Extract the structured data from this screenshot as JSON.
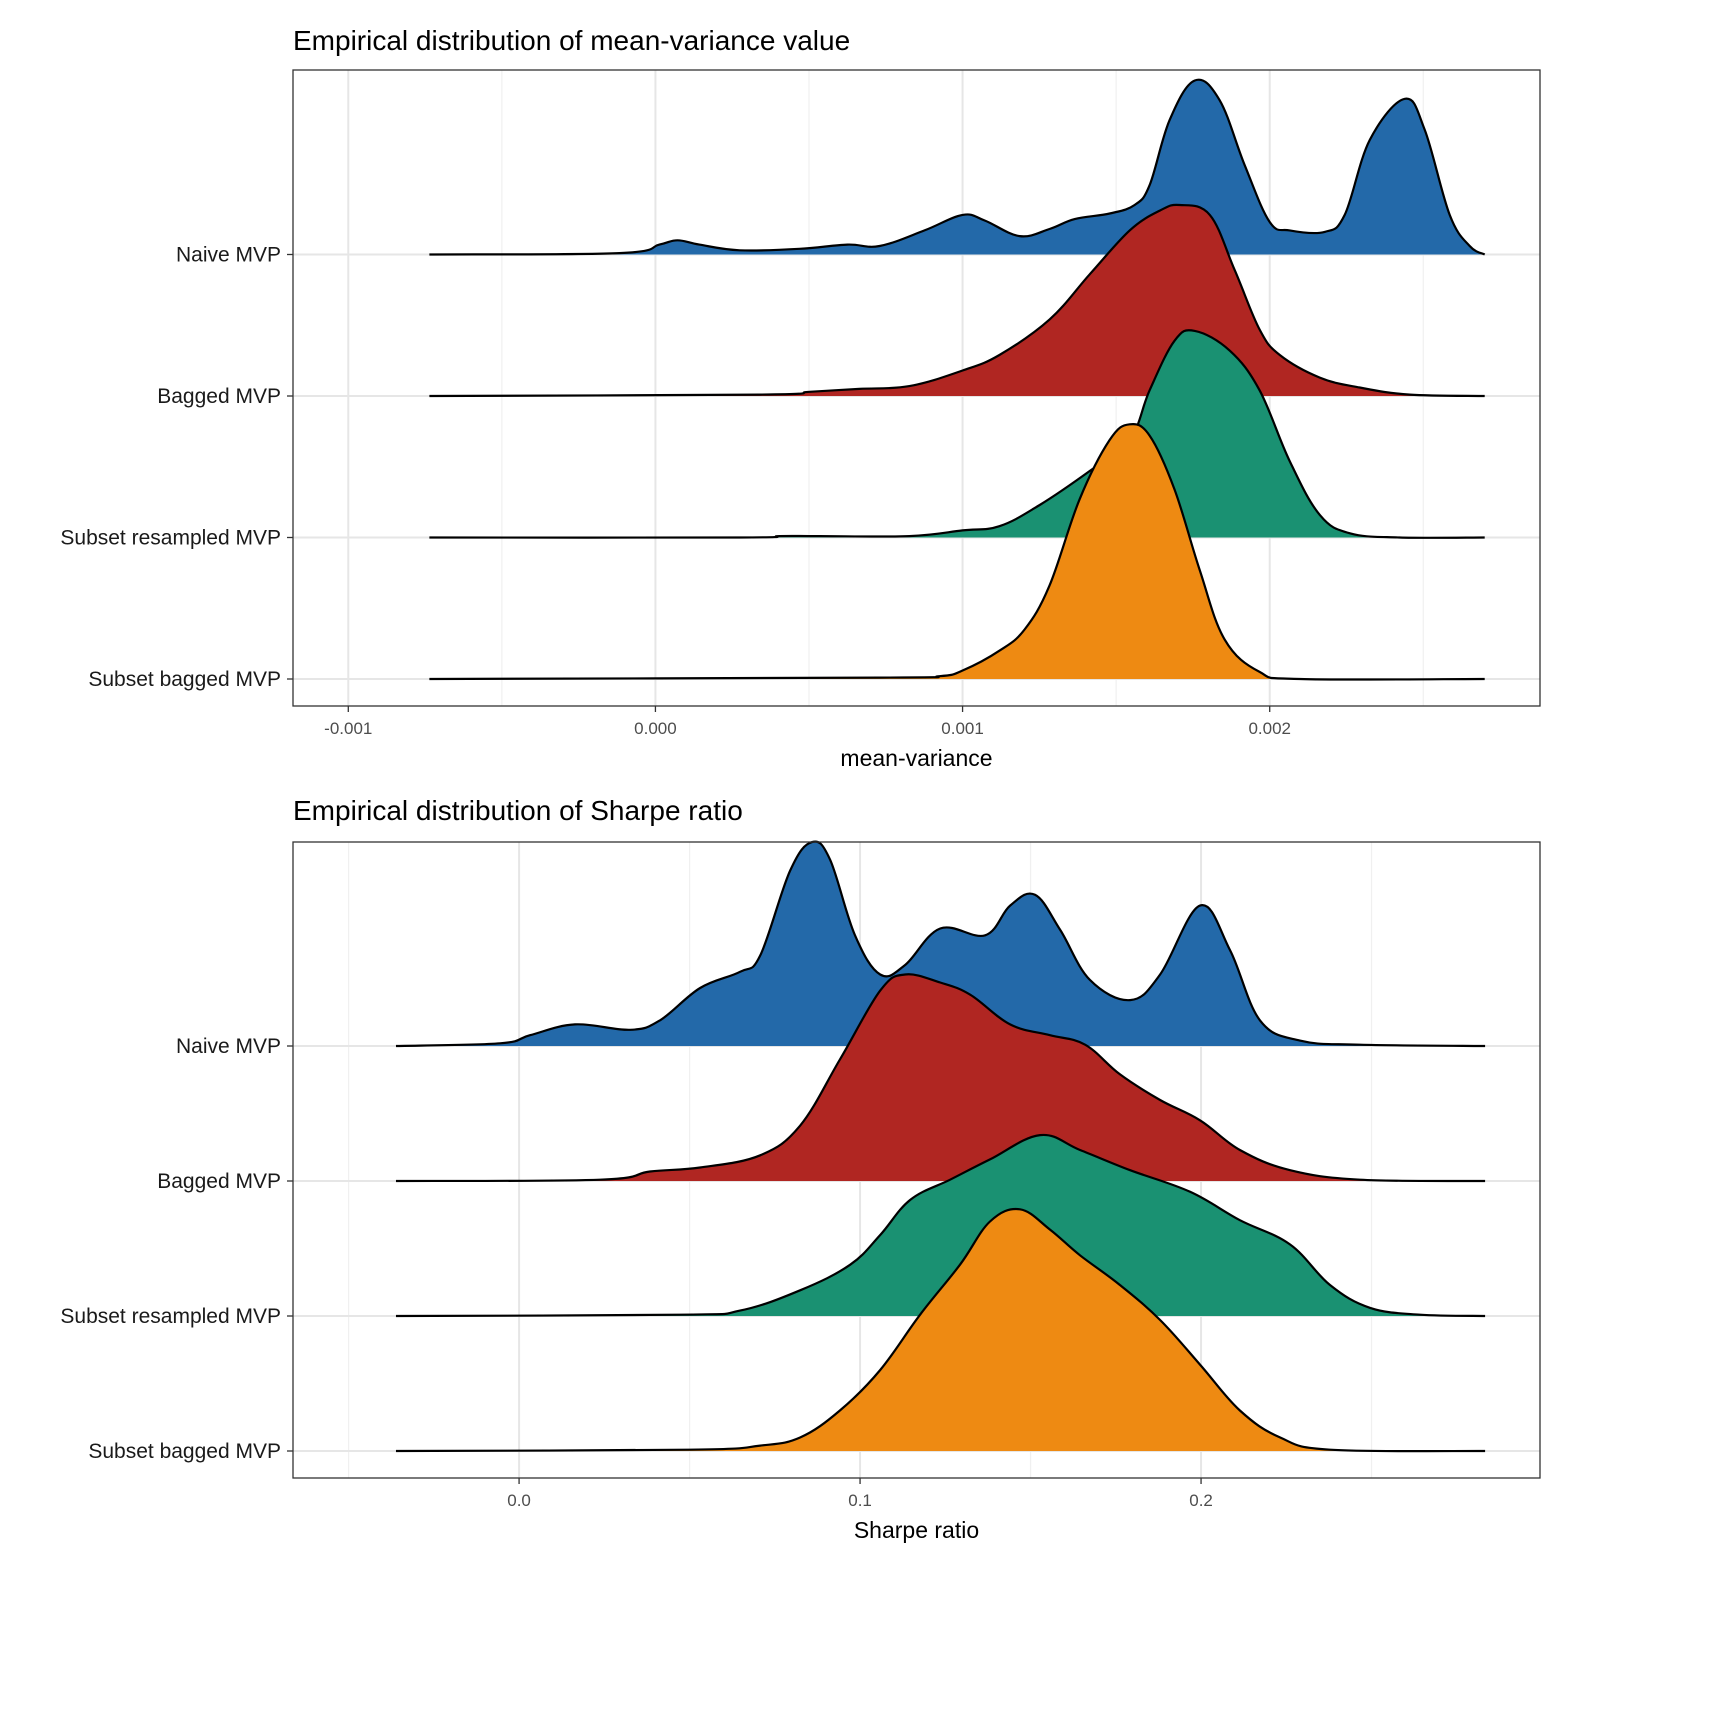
{
  "chart_data": [
    {
      "type": "ridgeline",
      "title": "Empirical distribution of mean-variance value",
      "xlabel": "mean-variance",
      "ylabel": "",
      "xlim": [
        -0.00118,
        0.00288
      ],
      "xticks": [
        -0.001,
        0.0,
        0.001,
        0.002
      ],
      "xtick_labels": [
        "-0.001",
        "0.000",
        "0.001",
        "0.002"
      ],
      "grid": true,
      "categories": [
        "Naive MVP",
        "Bagged MVP",
        "Subset resampled MVP",
        "Subset bagged MVP"
      ],
      "series": [
        {
          "name": "Naive MVP",
          "color": "#2369A9",
          "x": [
            -0.000736,
            -0.000117,
            1.3e-05,
            7.2e-05,
            0.000143,
            0.000274,
            0.000469,
            0.000625,
            0.00073,
            0.000876,
            0.001,
            0.001072,
            0.001186,
            0.001283,
            0.001365,
            0.001479,
            0.00156,
            0.001609,
            0.001674,
            0.001756,
            0.001837,
            0.001919,
            0.002,
            0.002065,
            0.002179,
            0.002244,
            0.002326,
            0.00244,
            0.002505,
            0.002586,
            0.002651,
            0.0027
          ],
          "density": [
            0,
            0.01,
            0.07,
            0.1,
            0.07,
            0.03,
            0.04,
            0.07,
            0.06,
            0.17,
            0.28,
            0.24,
            0.13,
            0.18,
            0.25,
            0.29,
            0.35,
            0.49,
            0.95,
            1.23,
            1.09,
            0.63,
            0.23,
            0.17,
            0.16,
            0.28,
            0.81,
            1.1,
            0.88,
            0.28,
            0.06,
            0
          ]
        },
        {
          "name": "Bagged MVP",
          "color": "#B02622",
          "x": [
            -0.000736,
            0.000339,
            0.000502,
            0.000664,
            0.000827,
            0.001,
            0.00112,
            0.001283,
            0.001414,
            0.001544,
            0.001642,
            0.001707,
            0.001805,
            0.001886,
            0.001967,
            0.002033,
            0.002163,
            0.002293,
            0.002456,
            0.0027
          ],
          "density": [
            0,
            0.01,
            0.03,
            0.05,
            0.07,
            0.18,
            0.29,
            0.54,
            0.86,
            1.17,
            1.31,
            1.35,
            1.28,
            0.89,
            0.47,
            0.29,
            0.13,
            0.06,
            0.01,
            0
          ]
        },
        {
          "name": "Subset resampled MVP",
          "color": "#1A9172",
          "x": [
            -0.000736,
            0.000274,
            0.000404,
            0.000534,
            0.000827,
            0.001,
            0.00112,
            0.001251,
            0.001414,
            0.001544,
            0.001609,
            0.00169,
            0.001756,
            0.00187,
            0.001967,
            0.002065,
            0.002163,
            0.002261,
            0.002423,
            0.0027
          ],
          "density": [
            0,
            0,
            0.01,
            0.01,
            0.01,
            0.05,
            0.08,
            0.23,
            0.47,
            0.69,
            1.04,
            1.39,
            1.46,
            1.32,
            1.04,
            0.54,
            0.16,
            0.03,
            0,
            0
          ]
        },
        {
          "name": "Subset bagged MVP",
          "color": "#EE8A12",
          "x": [
            -0.000736,
            0.00073,
            0.000925,
            0.001,
            0.00112,
            0.001202,
            0.001283,
            0.001381,
            0.001479,
            0.001544,
            0.001609,
            0.00169,
            0.001772,
            0.001853,
            0.001967,
            0.002098,
            0.0027
          ],
          "density": [
            0,
            0.01,
            0.02,
            0.06,
            0.2,
            0.35,
            0.66,
            1.27,
            1.69,
            1.8,
            1.72,
            1.34,
            0.77,
            0.28,
            0.05,
            0,
            0
          ]
        }
      ]
    },
    {
      "type": "ridgeline",
      "title": "Empirical distribution of Sharpe ratio",
      "xlabel": "Sharpe ratio",
      "ylabel": "",
      "xlim": [
        -0.0663,
        0.2994
      ],
      "xticks": [
        0.0,
        0.1,
        0.2
      ],
      "xtick_labels": [
        "0.0",
        "0.1",
        "0.2"
      ],
      "grid": true,
      "categories": [
        "Naive MVP",
        "Bagged MVP",
        "Subset resampled MVP",
        "Subset bagged MVP"
      ],
      "series": [
        {
          "name": "Naive MVP",
          "color": "#2369A9",
          "x": [
            -0.0361,
            -0.0056,
            0.0032,
            0.0164,
            0.0326,
            0.0413,
            0.0531,
            0.0648,
            0.0707,
            0.0795,
            0.0859,
            0.0912,
            0.0985,
            0.1059,
            0.1132,
            0.1235,
            0.1367,
            0.144,
            0.1513,
            0.1587,
            0.1674,
            0.1792,
            0.188,
            0.1997,
            0.2085,
            0.2173,
            0.229,
            0.2466,
            0.2833
          ],
          "density": [
            0,
            0.02,
            0.08,
            0.16,
            0.12,
            0.19,
            0.43,
            0.55,
            0.67,
            1.3,
            1.51,
            1.38,
            0.82,
            0.53,
            0.6,
            0.87,
            0.82,
            1.04,
            1.12,
            0.86,
            0.49,
            0.34,
            0.53,
            1.04,
            0.71,
            0.19,
            0.04,
            0.01,
            0
          ]
        },
        {
          "name": "Bagged MVP",
          "color": "#B02622",
          "x": [
            -0.0361,
            0.0238,
            0.0384,
            0.0531,
            0.0707,
            0.0824,
            0.0941,
            0.1059,
            0.1132,
            0.1235,
            0.1323,
            0.144,
            0.1557,
            0.166,
            0.1762,
            0.188,
            0.1997,
            0.2114,
            0.2261,
            0.2466,
            0.2833
          ],
          "density": [
            0,
            0.01,
            0.07,
            0.1,
            0.19,
            0.41,
            0.9,
            1.41,
            1.53,
            1.47,
            1.38,
            1.16,
            1.08,
            1.01,
            0.79,
            0.6,
            0.45,
            0.23,
            0.08,
            0.01,
            0
          ]
        },
        {
          "name": "Subset resampled MVP",
          "color": "#1A9172",
          "x": [
            -0.0361,
            0.0472,
            0.0648,
            0.0824,
            0.0971,
            0.1059,
            0.1147,
            0.1264,
            0.1381,
            0.1528,
            0.1645,
            0.1792,
            0.1968,
            0.2114,
            0.2261,
            0.2378,
            0.2496,
            0.2642,
            0.2833
          ],
          "density": [
            0,
            0.01,
            0.04,
            0.19,
            0.38,
            0.6,
            0.86,
            1.01,
            1.16,
            1.34,
            1.23,
            1.08,
            0.92,
            0.71,
            0.53,
            0.23,
            0.06,
            0.01,
            0
          ]
        },
        {
          "name": "Subset bagged MVP",
          "color": "#EE8A12",
          "x": [
            -0.0361,
            0.0501,
            0.0707,
            0.0824,
            0.0941,
            0.1059,
            0.1176,
            0.1293,
            0.1381,
            0.1469,
            0.1557,
            0.1645,
            0.1762,
            0.188,
            0.1997,
            0.2114,
            0.2232,
            0.2378,
            0.2833
          ],
          "density": [
            0,
            0.01,
            0.04,
            0.1,
            0.3,
            0.6,
            1.01,
            1.38,
            1.7,
            1.79,
            1.64,
            1.45,
            1.23,
            0.97,
            0.64,
            0.3,
            0.1,
            0.01,
            0
          ]
        }
      ]
    }
  ]
}
